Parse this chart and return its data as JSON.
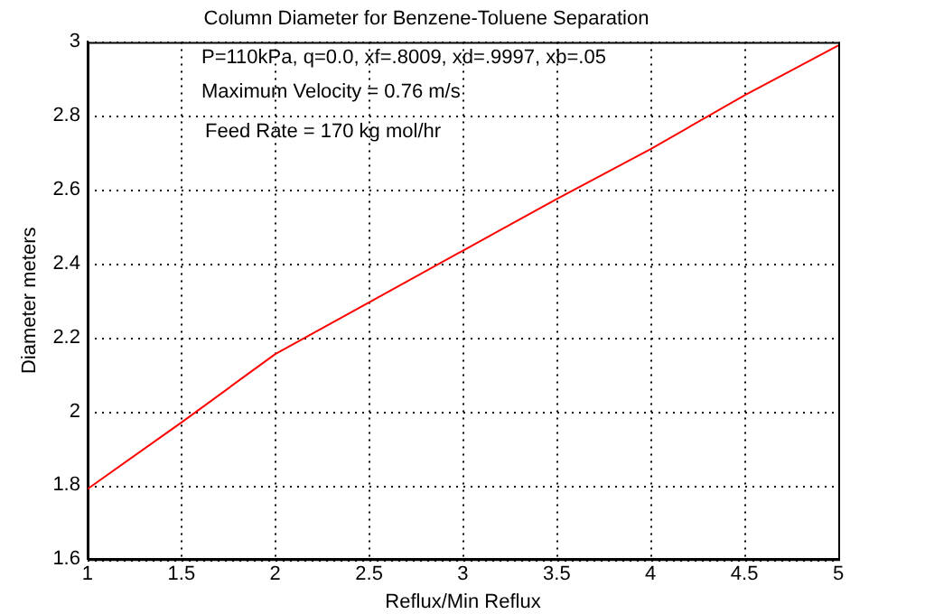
{
  "chart_data": {
    "type": "line",
    "title": "Column Diameter for Benzene-Toluene Separation",
    "xlabel": "Reflux/Min Reflux",
    "ylabel": "Diameter meters",
    "annotations": [
      "P=110kPa, q=0.0, xf=.8009, xd=.9997, xb=.05",
      "Maximum Velocity = 0.76 m/s",
      "Feed Rate = 170 kg mol/hr"
    ],
    "x": [
      1,
      1.5,
      2,
      2.5,
      3,
      3.5,
      4,
      4.5,
      5
    ],
    "series": [
      {
        "color": "#ff0000",
        "values": [
          1.79,
          1.97,
          2.155,
          2.295,
          2.435,
          2.575,
          2.71,
          2.855,
          2.99
        ]
      }
    ],
    "xlim": [
      1,
      5
    ],
    "xticks": [
      1,
      1.5,
      2,
      2.5,
      3,
      3.5,
      4,
      4.5,
      5
    ],
    "ylim": [
      1.6,
      3
    ],
    "yticks": [
      1.6,
      1.8,
      2,
      2.2,
      2.4,
      2.6,
      2.8,
      3
    ],
    "grid": true,
    "legend": false,
    "marker": "none",
    "line_style": "solid"
  }
}
